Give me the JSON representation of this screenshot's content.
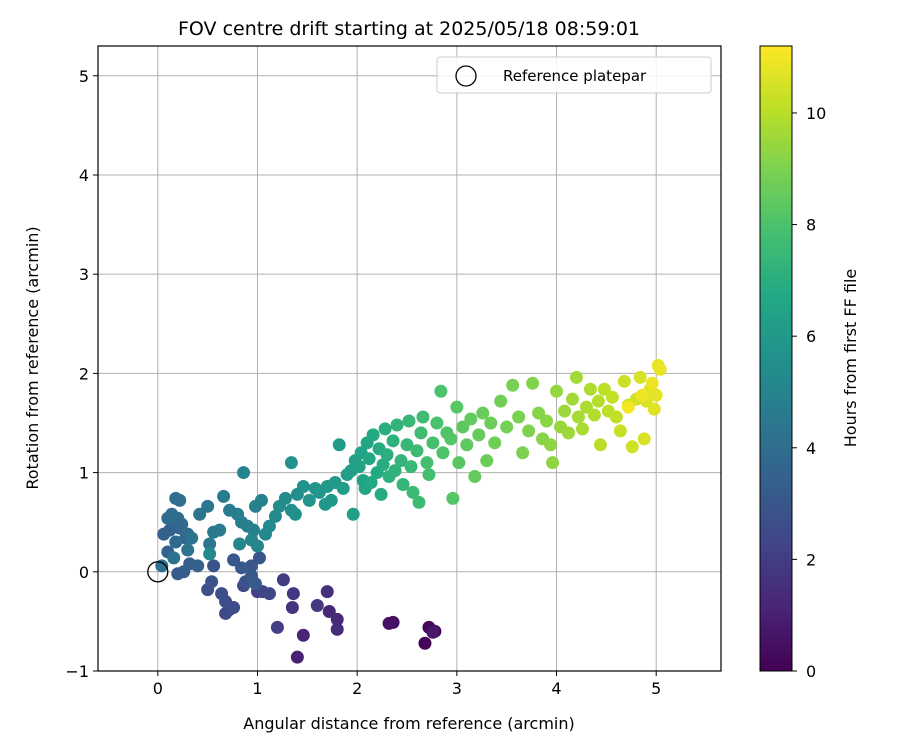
{
  "chart_data": {
    "type": "scatter",
    "title": "FOV centre drift starting at 2025/05/18 08:59:01",
    "xlabel": "Angular distance from reference (arcmin)",
    "ylabel": "Rotation from reference (arcmin)",
    "xlim": [
      -0.6,
      5.65
    ],
    "ylim": [
      -1.0,
      5.3
    ],
    "xticks": [
      0,
      1,
      2,
      3,
      4,
      5
    ],
    "yticks": [
      -1,
      0,
      1,
      2,
      3,
      4,
      5
    ],
    "xtick_labels": [
      "0",
      "1",
      "2",
      "3",
      "4",
      "5"
    ],
    "ytick_labels": [
      "−1",
      "0",
      "1",
      "2",
      "3",
      "4",
      "5"
    ],
    "grid": true,
    "legend": {
      "position": "top-right",
      "entries": [
        "Reference platepar"
      ]
    },
    "reference_point": {
      "x": 0,
      "y": 0,
      "label": "Reference platepar"
    },
    "colorbar": {
      "label": "Hours from first FF file",
      "range": [
        0,
        11.2
      ],
      "ticks": [
        0,
        2,
        4,
        6,
        8,
        10
      ],
      "tick_labels": [
        "0",
        "2",
        "4",
        "6",
        "8",
        "10"
      ],
      "colormap": "viridis"
    },
    "series": [
      {
        "points": [
          [
            2.68,
            -0.72,
            0.1
          ],
          [
            2.72,
            -0.56,
            0.2
          ],
          [
            2.78,
            -0.6,
            0.3
          ],
          [
            2.36,
            -0.51,
            0.45
          ],
          [
            2.32,
            -0.52,
            0.55
          ],
          [
            2.76,
            -0.61,
            0.7
          ],
          [
            1.4,
            -0.86,
            1.05
          ],
          [
            1.46,
            -0.64,
            1.15
          ],
          [
            1.72,
            -0.4,
            1.25
          ],
          [
            1.8,
            -0.48,
            1.35
          ],
          [
            1.8,
            -0.58,
            1.45
          ],
          [
            1.7,
            -0.2,
            1.55
          ],
          [
            1.35,
            -0.36,
            1.65
          ],
          [
            1.36,
            -0.22,
            1.75
          ],
          [
            1.6,
            -0.34,
            1.85
          ],
          [
            1.26,
            -0.08,
            1.95
          ],
          [
            1.2,
            -0.56,
            2.05
          ],
          [
            1.0,
            -0.2,
            2.15
          ],
          [
            1.05,
            -0.2,
            2.25
          ],
          [
            1.12,
            -0.22,
            2.35
          ],
          [
            0.86,
            -0.14,
            2.45
          ],
          [
            0.68,
            -0.42,
            2.5
          ],
          [
            0.72,
            -0.38,
            2.55
          ],
          [
            0.76,
            -0.36,
            2.6
          ],
          [
            0.68,
            -0.3,
            2.65
          ],
          [
            0.64,
            -0.22,
            2.7
          ],
          [
            0.5,
            -0.18,
            2.75
          ],
          [
            0.54,
            -0.1,
            2.8
          ],
          [
            0.56,
            0.06,
            2.85
          ],
          [
            0.88,
            -0.1,
            2.9
          ],
          [
            0.94,
            0.06,
            2.95
          ],
          [
            1.02,
            0.14,
            3.0
          ],
          [
            0.76,
            0.12,
            3.05
          ],
          [
            0.84,
            0.04,
            3.1
          ],
          [
            0.94,
            -0.04,
            3.15
          ],
          [
            0.98,
            -0.12,
            3.2
          ],
          [
            0.2,
            -0.02,
            3.25
          ],
          [
            0.26,
            0.0,
            3.3
          ],
          [
            0.32,
            0.08,
            3.35
          ],
          [
            0.4,
            0.06,
            3.4
          ],
          [
            0.1,
            0.2,
            3.45
          ],
          [
            0.06,
            0.38,
            3.5
          ],
          [
            0.12,
            0.42,
            3.55
          ],
          [
            0.16,
            0.5,
            3.6
          ],
          [
            0.22,
            0.44,
            3.65
          ],
          [
            0.28,
            0.34,
            3.7
          ],
          [
            0.18,
            0.3,
            3.75
          ],
          [
            0.2,
            0.54,
            3.8
          ],
          [
            0.24,
            0.48,
            3.85
          ],
          [
            0.3,
            0.38,
            3.9
          ],
          [
            0.1,
            0.54,
            3.95
          ],
          [
            0.14,
            0.58,
            4.0
          ],
          [
            0.18,
            0.74,
            4.05
          ],
          [
            0.22,
            0.72,
            4.1
          ],
          [
            0.04,
            0.06,
            4.15
          ],
          [
            0.16,
            0.14,
            4.2
          ],
          [
            0.3,
            0.22,
            4.25
          ],
          [
            0.34,
            0.34,
            4.3
          ],
          [
            0.42,
            0.58,
            4.35
          ],
          [
            0.5,
            0.66,
            4.4
          ],
          [
            0.52,
            0.28,
            4.45
          ],
          [
            0.56,
            0.4,
            4.5
          ],
          [
            0.62,
            0.42,
            4.55
          ],
          [
            0.66,
            0.76,
            4.6
          ],
          [
            0.72,
            0.62,
            4.65
          ],
          [
            0.8,
            0.58,
            4.7
          ],
          [
            0.84,
            0.5,
            4.75
          ],
          [
            0.9,
            0.46,
            4.8
          ],
          [
            0.96,
            0.42,
            4.85
          ],
          [
            0.98,
            0.66,
            4.9
          ],
          [
            1.04,
            0.72,
            4.95
          ],
          [
            0.86,
            1.0,
            5.0
          ],
          [
            0.94,
            0.32,
            5.05
          ],
          [
            1.0,
            0.26,
            5.1
          ],
          [
            0.82,
            0.28,
            5.15
          ],
          [
            0.52,
            0.18,
            5.2
          ],
          [
            1.08,
            0.38,
            5.25
          ],
          [
            1.12,
            0.46,
            5.3
          ],
          [
            1.18,
            0.56,
            5.35
          ],
          [
            1.22,
            0.66,
            5.4
          ],
          [
            1.28,
            0.74,
            5.45
          ],
          [
            1.34,
            0.62,
            5.5
          ],
          [
            1.4,
            0.78,
            5.55
          ],
          [
            1.38,
            0.58,
            5.6
          ],
          [
            1.34,
            1.1,
            5.65
          ],
          [
            1.46,
            0.86,
            5.7
          ],
          [
            1.52,
            0.72,
            5.75
          ],
          [
            1.58,
            0.84,
            5.8
          ],
          [
            1.62,
            0.8,
            5.85
          ],
          [
            1.68,
            0.68,
            5.9
          ],
          [
            1.7,
            0.86,
            5.95
          ],
          [
            1.74,
            0.72,
            6.0
          ],
          [
            1.78,
            0.9,
            6.05
          ],
          [
            1.82,
            1.28,
            6.1
          ],
          [
            1.86,
            0.84,
            6.15
          ],
          [
            1.9,
            0.98,
            6.2
          ],
          [
            1.94,
            1.02,
            6.25
          ],
          [
            1.96,
            0.58,
            6.3
          ],
          [
            1.98,
            1.12,
            6.35
          ],
          [
            2.02,
            1.06,
            6.4
          ],
          [
            2.04,
            1.2,
            6.45
          ],
          [
            2.06,
            0.92,
            6.5
          ],
          [
            2.08,
            0.84,
            6.55
          ],
          [
            2.1,
            1.3,
            6.6
          ],
          [
            2.12,
            1.14,
            6.65
          ],
          [
            2.14,
            0.9,
            6.7
          ],
          [
            2.16,
            1.38,
            6.75
          ],
          [
            2.2,
            1.0,
            6.8
          ],
          [
            2.22,
            1.24,
            6.85
          ],
          [
            2.24,
            0.78,
            6.9
          ],
          [
            2.26,
            1.08,
            6.95
          ],
          [
            2.28,
            1.44,
            7.0
          ],
          [
            2.3,
            1.18,
            7.05
          ],
          [
            2.32,
            0.96,
            7.1
          ],
          [
            2.36,
            1.32,
            7.15
          ],
          [
            2.38,
            1.02,
            7.2
          ],
          [
            2.4,
            1.48,
            7.25
          ],
          [
            2.44,
            1.12,
            7.3
          ],
          [
            2.46,
            0.88,
            7.35
          ],
          [
            2.5,
            1.28,
            7.4
          ],
          [
            2.52,
            1.52,
            7.45
          ],
          [
            2.54,
            1.06,
            7.5
          ],
          [
            2.56,
            0.8,
            7.55
          ],
          [
            2.6,
            1.22,
            7.6
          ],
          [
            2.62,
            0.7,
            7.65
          ],
          [
            2.64,
            1.4,
            7.7
          ],
          [
            2.66,
            1.56,
            7.75
          ],
          [
            2.7,
            1.1,
            7.8
          ],
          [
            2.72,
            0.98,
            7.85
          ],
          [
            2.76,
            1.3,
            7.9
          ],
          [
            2.8,
            1.5,
            7.95
          ],
          [
            2.84,
            1.82,
            8.0
          ],
          [
            2.86,
            1.2,
            8.05
          ],
          [
            2.9,
            1.4,
            8.1
          ],
          [
            2.94,
            1.34,
            8.15
          ],
          [
            2.96,
            0.74,
            8.2
          ],
          [
            3.0,
            1.66,
            8.25
          ],
          [
            3.02,
            1.1,
            8.3
          ],
          [
            3.06,
            1.46,
            8.35
          ],
          [
            3.1,
            1.28,
            8.4
          ],
          [
            3.14,
            1.54,
            8.45
          ],
          [
            3.18,
            0.96,
            8.5
          ],
          [
            3.22,
            1.38,
            8.55
          ],
          [
            3.26,
            1.6,
            8.6
          ],
          [
            3.3,
            1.12,
            8.65
          ],
          [
            3.34,
            1.5,
            8.7
          ],
          [
            3.38,
            1.3,
            8.75
          ],
          [
            3.44,
            1.72,
            8.8
          ],
          [
            3.5,
            1.46,
            8.85
          ],
          [
            3.56,
            1.88,
            8.9
          ],
          [
            3.62,
            1.56,
            8.95
          ],
          [
            3.66,
            1.2,
            9.0
          ],
          [
            3.72,
            1.42,
            9.05
          ],
          [
            3.76,
            1.9,
            9.1
          ],
          [
            3.82,
            1.6,
            9.15
          ],
          [
            3.86,
            1.34,
            9.2
          ],
          [
            3.9,
            1.52,
            9.25
          ],
          [
            3.94,
            1.28,
            9.3
          ],
          [
            3.96,
            1.1,
            9.35
          ],
          [
            4.0,
            1.82,
            9.4
          ],
          [
            4.04,
            1.46,
            9.45
          ],
          [
            4.08,
            1.62,
            9.5
          ],
          [
            4.12,
            1.4,
            9.55
          ],
          [
            4.16,
            1.74,
            9.6
          ],
          [
            4.2,
            1.96,
            9.65
          ],
          [
            4.22,
            1.56,
            9.7
          ],
          [
            4.26,
            1.44,
            9.75
          ],
          [
            4.3,
            1.66,
            9.8
          ],
          [
            4.34,
            1.84,
            9.85
          ],
          [
            4.38,
            1.58,
            9.9
          ],
          [
            4.42,
            1.72,
            9.95
          ],
          [
            4.44,
            1.28,
            10.0
          ],
          [
            4.48,
            1.84,
            10.05
          ],
          [
            4.52,
            1.62,
            10.1
          ],
          [
            4.56,
            1.76,
            10.15
          ],
          [
            4.6,
            1.56,
            10.2
          ],
          [
            4.64,
            1.42,
            10.25
          ],
          [
            4.68,
            1.92,
            10.3
          ],
          [
            4.72,
            1.68,
            10.35
          ],
          [
            4.76,
            1.26,
            10.4
          ],
          [
            4.8,
            1.74,
            10.45
          ],
          [
            4.84,
            1.96,
            10.5
          ],
          [
            4.88,
            1.34,
            10.55
          ],
          [
            4.9,
            1.72,
            10.6
          ],
          [
            4.94,
            1.84,
            10.65
          ],
          [
            4.98,
            1.64,
            10.7
          ],
          [
            5.0,
            1.78,
            10.75
          ],
          [
            5.02,
            2.08,
            10.8
          ],
          [
            5.04,
            2.04,
            10.85
          ],
          [
            4.96,
            1.9,
            10.9
          ],
          [
            4.86,
            1.78,
            10.95
          ],
          [
            4.72,
            1.66,
            11.0
          ]
        ]
      }
    ]
  }
}
